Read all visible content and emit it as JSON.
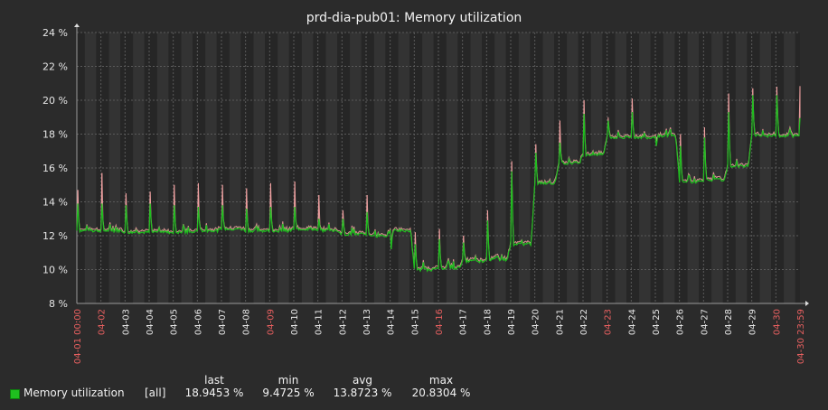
{
  "chart_data": {
    "type": "line",
    "title": "prd-dia-pub01: Memory utilization",
    "ylim": [
      8,
      24
    ],
    "y_ticks": [
      "8 %",
      "10 %",
      "12 %",
      "14 %",
      "16 %",
      "18 %",
      "20 %",
      "22 %",
      "24 %"
    ],
    "x_start_label": "04-01 00:00",
    "x_end_label": "04-30 23:59",
    "x_day_labels": [
      "04-02",
      "04-03",
      "04-04",
      "04-05",
      "04-06",
      "04-07",
      "04-08",
      "04-09",
      "04-10",
      "04-11",
      "04-12",
      "04-13",
      "04-14",
      "04-15",
      "04-16",
      "04-17",
      "04-18",
      "04-19",
      "04-20",
      "04-21",
      "04-22",
      "04-23",
      "04-24",
      "04-25",
      "04-26",
      "04-27",
      "04-28",
      "04-29",
      "04-30"
    ],
    "x_highlight_labels": [
      "04-01 00:00",
      "04-02",
      "04-09",
      "04-16",
      "04-23",
      "04-30",
      "04-30 23:59"
    ],
    "grid": true,
    "daily_baseline": [
      12.3,
      12.3,
      12.2,
      12.2,
      12.2,
      12.3,
      12.4,
      12.3,
      12.3,
      12.4,
      12.3,
      12.1,
      12.0,
      12.3,
      10.0,
      10.1,
      10.5,
      10.6,
      11.5,
      15.1,
      16.3,
      16.8,
      17.8,
      17.8,
      17.9,
      15.2,
      15.3,
      16.1,
      17.9,
      17.9
    ],
    "daily_peak": [
      13.9,
      13.9,
      13.8,
      13.9,
      13.8,
      13.7,
      13.8,
      13.6,
      13.7,
      13.7,
      13.0,
      13.0,
      13.4,
      11.2,
      11.5,
      11.8,
      11.6,
      12.9,
      15.8,
      16.9,
      17.5,
      19.2,
      18.8,
      19.3,
      17.3,
      17.3,
      17.8,
      19.3,
      20.3,
      20.3
    ],
    "daily_max": [
      14.7,
      15.7,
      14.5,
      14.6,
      15.0,
      15.1,
      15.0,
      14.8,
      15.1,
      15.2,
      14.4,
      13.5,
      14.4,
      11.5,
      12.2,
      12.4,
      12.0,
      13.5,
      16.4,
      17.4,
      18.8,
      20.0,
      19.0,
      20.1,
      17.8,
      18.0,
      18.4,
      20.4,
      20.7,
      20.8
    ],
    "series": [
      {
        "name": "Memory utilization",
        "color": "#1fbf1f",
        "max_color": "#f4a3a3"
      }
    ],
    "legend": {
      "item": "Memory utilization",
      "function": "[all]",
      "headers": [
        "last",
        "min",
        "avg",
        "max"
      ],
      "values": [
        "18.9453 %",
        "9.4725 %",
        "13.8723 %",
        "20.8304 %"
      ]
    }
  }
}
